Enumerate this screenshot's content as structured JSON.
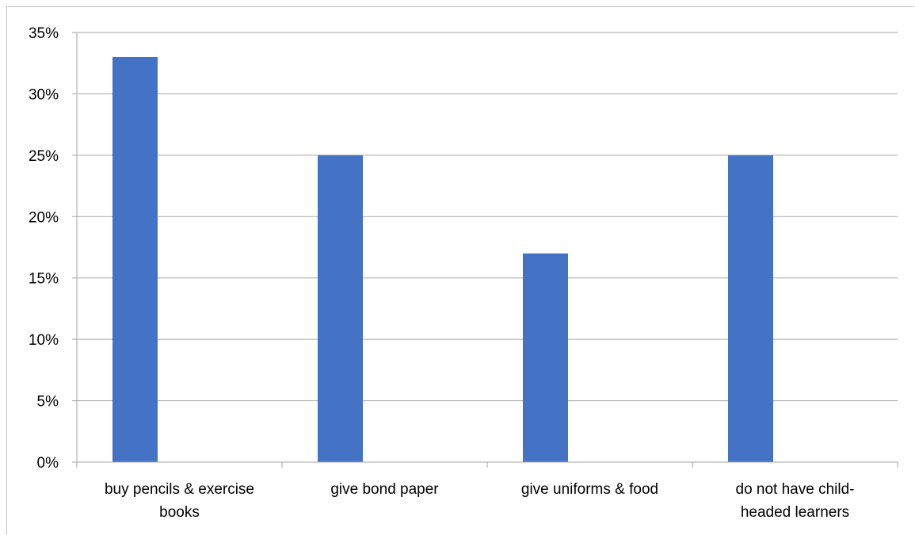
{
  "chart_data": {
    "type": "bar",
    "title": "",
    "xlabel": "",
    "ylabel": "",
    "categories": [
      [
        "buy pencils & exercise",
        "books"
      ],
      [
        "give bond paper"
      ],
      [
        "give uniforms & food"
      ],
      [
        "do not have child-",
        "headed learners"
      ]
    ],
    "values": [
      33,
      25,
      17,
      25
    ],
    "ylim": [
      0,
      35
    ],
    "yticks": [
      "0%",
      "5%",
      "10%",
      "15%",
      "20%",
      "25%",
      "30%",
      "35%"
    ],
    "grid": true,
    "legend": "none",
    "bar_color": "#4472C4",
    "grid_color": "#A6A6A6"
  }
}
